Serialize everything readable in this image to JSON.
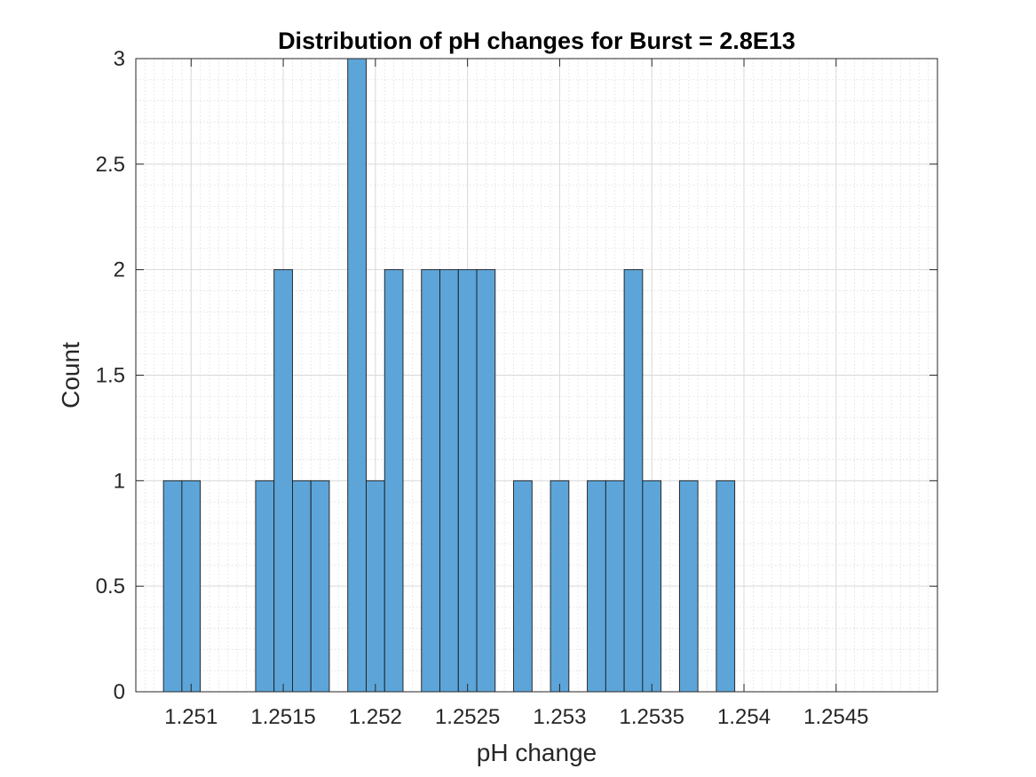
{
  "chart_data": {
    "type": "bar",
    "title": "Distribution of pH changes for Burst = 2.8E13",
    "xlabel": "pH change",
    "ylabel": "Count",
    "xlim": [
      1.2507,
      1.25505
    ],
    "ylim": [
      0,
      3
    ],
    "bin_width": 0.0001,
    "bins": [
      {
        "start": 1.25085,
        "end": 1.25095,
        "count": 1
      },
      {
        "start": 1.25095,
        "end": 1.25105,
        "count": 1
      },
      {
        "start": 1.25135,
        "end": 1.25145,
        "count": 1
      },
      {
        "start": 1.25145,
        "end": 1.25155,
        "count": 2
      },
      {
        "start": 1.25155,
        "end": 1.25165,
        "count": 1
      },
      {
        "start": 1.25165,
        "end": 1.25175,
        "count": 1
      },
      {
        "start": 1.25185,
        "end": 1.25195,
        "count": 3
      },
      {
        "start": 1.25195,
        "end": 1.25205,
        "count": 1
      },
      {
        "start": 1.25205,
        "end": 1.25215,
        "count": 2
      },
      {
        "start": 1.25225,
        "end": 1.25235,
        "count": 2
      },
      {
        "start": 1.25235,
        "end": 1.25245,
        "count": 2
      },
      {
        "start": 1.25245,
        "end": 1.25255,
        "count": 2
      },
      {
        "start": 1.25255,
        "end": 1.25265,
        "count": 2
      },
      {
        "start": 1.25275,
        "end": 1.25285,
        "count": 1
      },
      {
        "start": 1.25295,
        "end": 1.25305,
        "count": 1
      },
      {
        "start": 1.25315,
        "end": 1.25325,
        "count": 1
      },
      {
        "start": 1.25325,
        "end": 1.25335,
        "count": 1
      },
      {
        "start": 1.25335,
        "end": 1.25345,
        "count": 2
      },
      {
        "start": 1.25345,
        "end": 1.25355,
        "count": 1
      },
      {
        "start": 1.25365,
        "end": 1.25375,
        "count": 1
      },
      {
        "start": 1.25385,
        "end": 1.25395,
        "count": 1
      }
    ],
    "x_ticks": [
      {
        "value": 1.251,
        "label": "1.251"
      },
      {
        "value": 1.2515,
        "label": "1.2515"
      },
      {
        "value": 1.252,
        "label": "1.252"
      },
      {
        "value": 1.2525,
        "label": "1.2525"
      },
      {
        "value": 1.253,
        "label": "1.253"
      },
      {
        "value": 1.2535,
        "label": "1.2535"
      },
      {
        "value": 1.254,
        "label": "1.254"
      },
      {
        "value": 1.2545,
        "label": "1.2545"
      }
    ],
    "y_ticks": [
      {
        "value": 0,
        "label": "0"
      },
      {
        "value": 0.5,
        "label": "0.5"
      },
      {
        "value": 1,
        "label": "1"
      },
      {
        "value": 1.5,
        "label": "1.5"
      },
      {
        "value": 2,
        "label": "2"
      },
      {
        "value": 2.5,
        "label": "2.5"
      },
      {
        "value": 3,
        "label": "3"
      }
    ],
    "grid": true,
    "minor_grid": true,
    "legend": "none",
    "colors": {
      "bar_fill": "#5DA5D8",
      "bar_edge": "#1a1a1a"
    }
  }
}
